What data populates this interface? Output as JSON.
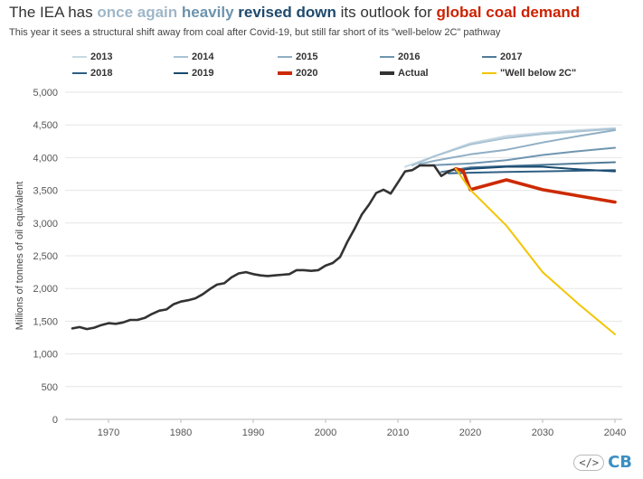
{
  "header": {
    "title_parts": [
      {
        "text": "The IEA has ",
        "color": "#333333",
        "bold": false
      },
      {
        "text": "once again",
        "color": "#9fb7c8",
        "bold": true
      },
      {
        "text": " heavily ",
        "color": "#6d93ad",
        "bold": true
      },
      {
        "text": "revised down",
        "color": "#1e4a6e",
        "bold": true
      },
      {
        "text": " its outlook for ",
        "color": "#333333",
        "bold": false
      },
      {
        "text": "global coal demand",
        "color": "#cc2200",
        "bold": true
      }
    ],
    "subtitle": "This year it sees a structural shift away from coal after Covid-19, but still far short of its \"well-below 2C\" pathway"
  },
  "logo": {
    "code_symbol": "</>",
    "brand": "CB"
  },
  "chart_data": {
    "type": "line",
    "ylabel": "Millions of tonnes of oil equivalent",
    "xlabel": "",
    "xlim": [
      1964,
      2041
    ],
    "ylim": [
      0,
      5000
    ],
    "x_ticks": [
      1970,
      1980,
      1990,
      2000,
      2010,
      2020,
      2030,
      2040
    ],
    "x_tick_labels": [
      "1970",
      "1980",
      "1990",
      "2000",
      "2010",
      "2020",
      "2030",
      "2040"
    ],
    "y_ticks": [
      0,
      500,
      1000,
      1500,
      2000,
      2500,
      3000,
      3500,
      4000,
      4500,
      5000
    ],
    "y_tick_labels": [
      "0",
      "500",
      "1,000",
      "1,500",
      "2,000",
      "2,500",
      "3,000",
      "3,500",
      "4,000",
      "4,500",
      "5,000"
    ],
    "grid": true,
    "legend_position": "top",
    "legend_order": [
      [
        "2013",
        "2014",
        "2015",
        "2016",
        "2017"
      ],
      [
        "2018",
        "2019",
        "2020",
        "Actual",
        "\"Well below 2C\""
      ]
    ],
    "series": [
      {
        "name": "2013",
        "color": "#c9d9e4",
        "width": 2,
        "x": [
          2011,
          2015,
          2020,
          2025,
          2030,
          2035,
          2040
        ],
        "y": [
          3860,
          4020,
          4220,
          4330,
          4380,
          4420,
          4450
        ]
      },
      {
        "name": "2014",
        "color": "#a9c3d3",
        "width": 2,
        "x": [
          2012,
          2015,
          2020,
          2025,
          2030,
          2035,
          2040
        ],
        "y": [
          3880,
          4020,
          4200,
          4300,
          4360,
          4400,
          4440
        ]
      },
      {
        "name": "2015",
        "color": "#8fafc4",
        "width": 2,
        "x": [
          2013,
          2015,
          2020,
          2025,
          2030,
          2035,
          2040
        ],
        "y": [
          3900,
          3950,
          4050,
          4120,
          4230,
          4330,
          4420
        ]
      },
      {
        "name": "2016",
        "color": "#6f95b0",
        "width": 2,
        "x": [
          2014,
          2020,
          2025,
          2030,
          2035,
          2040
        ],
        "y": [
          3880,
          3910,
          3960,
          4040,
          4100,
          4150
        ]
      },
      {
        "name": "2017",
        "color": "#4f7a99",
        "width": 2,
        "x": [
          2016,
          2020,
          2025,
          2030,
          2035,
          2040
        ],
        "y": [
          3780,
          3850,
          3870,
          3890,
          3910,
          3930
        ]
      },
      {
        "name": "2018",
        "color": "#2f5f84",
        "width": 2,
        "x": [
          2017,
          2020,
          2025,
          2030,
          2035,
          2040
        ],
        "y": [
          3760,
          3770,
          3780,
          3790,
          3800,
          3810
        ]
      },
      {
        "name": "2019",
        "color": "#1a4a6f",
        "width": 2,
        "x": [
          2018,
          2020,
          2025,
          2030,
          2035,
          2040
        ],
        "y": [
          3800,
          3830,
          3860,
          3860,
          3820,
          3790
        ]
      },
      {
        "name": "Actual",
        "color": "#333333",
        "width": 2.6,
        "x": [
          1965,
          1966,
          1967,
          1968,
          1969,
          1970,
          1971,
          1972,
          1973,
          1974,
          1975,
          1976,
          1977,
          1978,
          1979,
          1980,
          1981,
          1982,
          1983,
          1984,
          1985,
          1986,
          1987,
          1988,
          1989,
          1990,
          1991,
          1992,
          1993,
          1994,
          1995,
          1996,
          1997,
          1998,
          1999,
          2000,
          2001,
          2002,
          2003,
          2004,
          2005,
          2006,
          2007,
          2008,
          2009,
          2010,
          2011,
          2012,
          2013,
          2014,
          2015,
          2016,
          2017,
          2018
        ],
        "y": [
          1390,
          1410,
          1380,
          1400,
          1440,
          1470,
          1460,
          1480,
          1520,
          1520,
          1550,
          1610,
          1660,
          1680,
          1760,
          1800,
          1820,
          1850,
          1910,
          1990,
          2060,
          2080,
          2170,
          2230,
          2250,
          2220,
          2200,
          2190,
          2200,
          2210,
          2220,
          2280,
          2280,
          2270,
          2280,
          2350,
          2390,
          2480,
          2710,
          2910,
          3130,
          3280,
          3460,
          3510,
          3450,
          3620,
          3790,
          3810,
          3880,
          3880,
          3880,
          3720,
          3790,
          3830
        ]
      },
      {
        "name": "2020",
        "color": "#cc2a00",
        "width": 3.6,
        "x": [
          2018,
          2019,
          2020,
          2025,
          2030,
          2040
        ],
        "y": [
          3830,
          3800,
          3510,
          3660,
          3510,
          3320
        ]
      },
      {
        "name": "\"Well below 2C\"",
        "color": "#f2c500",
        "width": 2,
        "x": [
          2018,
          2020,
          2025,
          2030,
          2035,
          2040
        ],
        "y": [
          3830,
          3510,
          2960,
          2250,
          1760,
          1300
        ]
      }
    ]
  }
}
